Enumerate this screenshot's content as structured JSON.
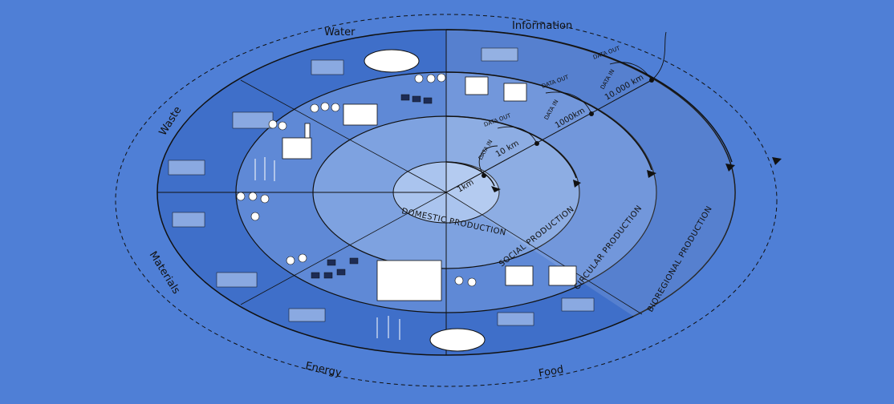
{
  "categories": {
    "water": "Water",
    "information": "Information",
    "waste": "Waste",
    "materials": "Materials",
    "energy": "Energy",
    "food": "Food"
  },
  "rings": {
    "domestic": "DOMESTIC PRODUCTION",
    "social": "SOCIAL PRODUCTION",
    "circular": "CIRCULAR PRODUCTION",
    "bioregional": "BIOREGIONAL PRODUCTION"
  },
  "distances": [
    "1km",
    "10 km",
    "1000km",
    "10.000 km"
  ],
  "flows": {
    "data_in": "DATA IN",
    "data_out": "DATA OUT"
  },
  "colors": {
    "background": "#4f7fd6",
    "outer_ring": "#3f6fc9",
    "ring_fill": "#6f97dc",
    "inner_fill": "#8fb0e6",
    "core_fill": "#aac4ee",
    "line": "#111111"
  }
}
